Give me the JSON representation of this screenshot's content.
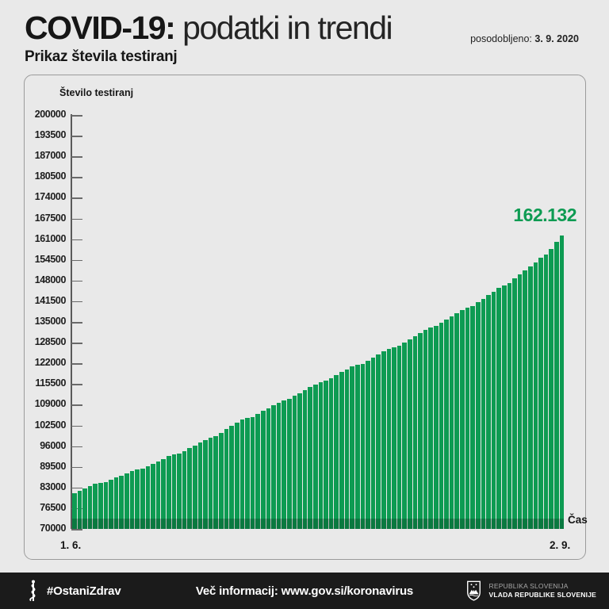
{
  "header": {
    "title_bold": "COVID-19:",
    "title_rest": " podatki in trendi",
    "updated_label": "posodobljeno: ",
    "updated_date": "3. 9. 2020",
    "subtitle": "Prikaz števila testiranj"
  },
  "chart_data": {
    "type": "bar",
    "title": "Prikaz števila testiranj",
    "ylabel": "Število testiranj",
    "xlabel": "Čas",
    "ylim": [
      70000,
      200000
    ],
    "ytick_step": 6500,
    "yticks": [
      "200000",
      "193500",
      "187000",
      "180500",
      "174000",
      "167500",
      "161000",
      "154500",
      "148000",
      "141500",
      "135000",
      "128500",
      "122000",
      "115500",
      "109000",
      "102500",
      "96000",
      "89500",
      "83000",
      "76500",
      "70000"
    ],
    "x_start_label": "1. 6.",
    "x_end_label": "2. 9.",
    "last_value": 162132,
    "last_value_label": "162.132",
    "grid": "off",
    "legend": "none",
    "values": [
      81300,
      82050,
      82800,
      83500,
      84100,
      84450,
      84700,
      85400,
      86100,
      86800,
      87500,
      88150,
      88600,
      88900,
      89650,
      90400,
      91200,
      92000,
      92800,
      93300,
      93600,
      94450,
      95300,
      96200,
      97100,
      98000,
      98650,
      99100,
      100200,
      101300,
      102400,
      103400,
      104300,
      104800,
      105200,
      106100,
      107000,
      107900,
      108800,
      109700,
      110300,
      110900,
      111800,
      112700,
      113600,
      114500,
      115400,
      116000,
      116500,
      117400,
      118300,
      119200,
      120100,
      121000,
      121500,
      121900,
      122900,
      123900,
      124800,
      125700,
      126500,
      127100,
      127600,
      128600,
      129600,
      130600,
      131600,
      132500,
      133200,
      133800,
      134800,
      135800,
      136800,
      137800,
      138700,
      139400,
      140100,
      141200,
      142300,
      143400,
      144500,
      145600,
      146500,
      147300,
      148600,
      149900,
      151200,
      152500,
      153800,
      155100,
      156300,
      158000,
      160100,
      162132
    ]
  },
  "footer": {
    "hashtag": "#OstaniZdrav",
    "info": "Več informacij: www.gov.si/koronavirus",
    "org_line1": "REPUBLIKA SLOVENIJA",
    "org_line2": "VLADA REPUBLIKE SLOVENIJE"
  },
  "colors": {
    "green": "#0d9b52",
    "background": "#e9e9e9",
    "footer_background": "#1b1b1b",
    "axis": "#5a5a5a"
  }
}
